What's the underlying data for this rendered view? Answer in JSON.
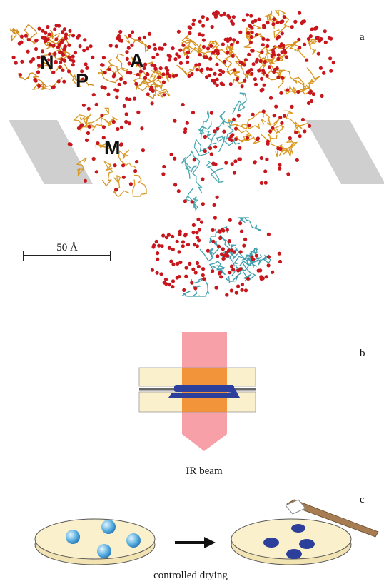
{
  "panels": [
    {
      "label": "a",
      "domain_labels": [
        "N",
        "P",
        "A",
        "M"
      ],
      "scale_bar": "50 Å"
    },
    {
      "label": "b",
      "caption": "IR beam"
    },
    {
      "label": "c",
      "caption": "controlled drying"
    }
  ]
}
